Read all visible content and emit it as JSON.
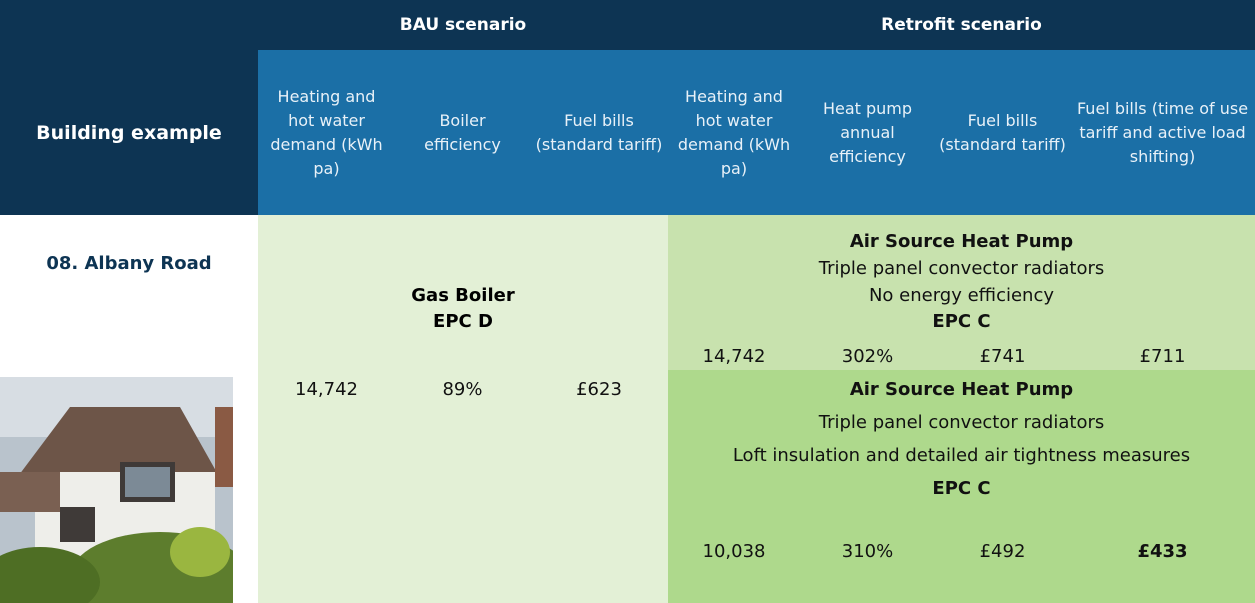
{
  "table": {
    "corner": "Building example",
    "groups": [
      "BAU scenario",
      "Retrofit scenario"
    ],
    "columns": [
      "Heating and hot water demand (kWh pa)",
      "Boiler efficiency",
      "Fuel bills (standard tariff)",
      "Heating and hot water demand (kWh pa)",
      "Heat pump annual efficiency",
      "Fuel bills (standard tariff)",
      "Fuel bills (time of use tariff and active load shifting)"
    ],
    "building": "08. Albany Road",
    "bau": {
      "lines": [
        "Gas Boiler",
        "EPC D"
      ],
      "values": [
        "14,742",
        "89%",
        "£623"
      ]
    },
    "retrofit": [
      {
        "lines": [
          "Air Source Heat Pump",
          "Triple panel convector radiators",
          "No energy efficiency",
          "EPC C"
        ],
        "values": [
          "14,742",
          "302%",
          "£741",
          "£711"
        ]
      },
      {
        "lines": [
          "Air Source Heat Pump",
          "Triple panel convector radiators",
          "Loft insulation and detailed air tightness measures",
          "EPC C"
        ],
        "values": [
          "10,038",
          "310%",
          "£492",
          "£433"
        ]
      }
    ]
  }
}
